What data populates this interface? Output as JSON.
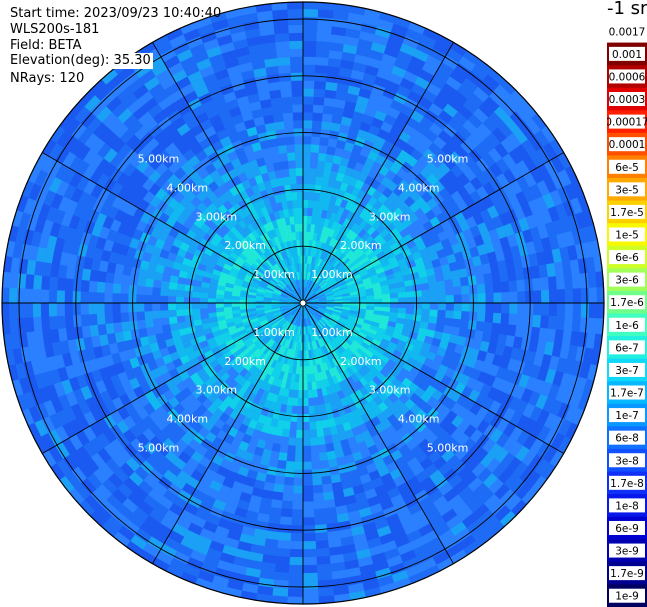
{
  "info": {
    "start_time": "Start time: 2023/09/23 10:40:40",
    "station": "WLS200s-181",
    "field": "Field: BETA",
    "elevation": "Elevation(deg): 35.30",
    "nrays": "NRays: 120"
  },
  "colorbar": {
    "units": "-1 sr",
    "labels": [
      "0.0017",
      "0.001",
      "0.0006",
      "0.0003",
      "0.00017",
      "0.0001",
      "6e-5",
      "3e-5",
      "1.7e-5",
      "1e-5",
      "6e-6",
      "3e-6",
      "1.7e-6",
      "1e-6",
      "6e-7",
      "3e-7",
      "1.7e-7",
      "1e-7",
      "6e-8",
      "3e-8",
      "1.7e-8",
      "1e-8",
      "6e-9",
      "3e-9",
      "1.7e-9",
      "1e-9"
    ],
    "colors": [
      "#ffffff",
      "#800000",
      "#b00000",
      "#e00000",
      "#ff2000",
      "#ff5000",
      "#ff8000",
      "#ffa800",
      "#ffd000",
      "#f8f800",
      "#d0ff28",
      "#a0ff58",
      "#70ff88",
      "#40ffc0",
      "#20f0e0",
      "#10d8f8",
      "#08b8ff",
      "#0898ff",
      "#1070ff",
      "#1050ff",
      "#1030f8",
      "#0818e8",
      "#0000d0",
      "#0000b0",
      "#000090",
      "#000060"
    ]
  },
  "chart_data": {
    "type": "heatmap",
    "projection": "polar PPI",
    "range_rings_km": [
      1,
      2,
      3,
      4,
      5
    ],
    "max_range_km": 5.3,
    "nrays": 120,
    "ring_labels": [
      "1.00km",
      "2.00km",
      "3.00km",
      "4.00km",
      "5.00km"
    ],
    "field_levels": [
      {
        "range_km": [
          0,
          0.6
        ],
        "beta_sr-1": 1.7e-07
      },
      {
        "range_km": [
          0.6,
          1.5
        ],
        "beta_sr-1": 1e-07
      },
      {
        "range_km": [
          1.5,
          2.8
        ],
        "beta_sr-1": 6e-08
      },
      {
        "range_km": [
          2.8,
          5.3
        ],
        "beta_sr-1": 3e-08
      }
    ]
  }
}
